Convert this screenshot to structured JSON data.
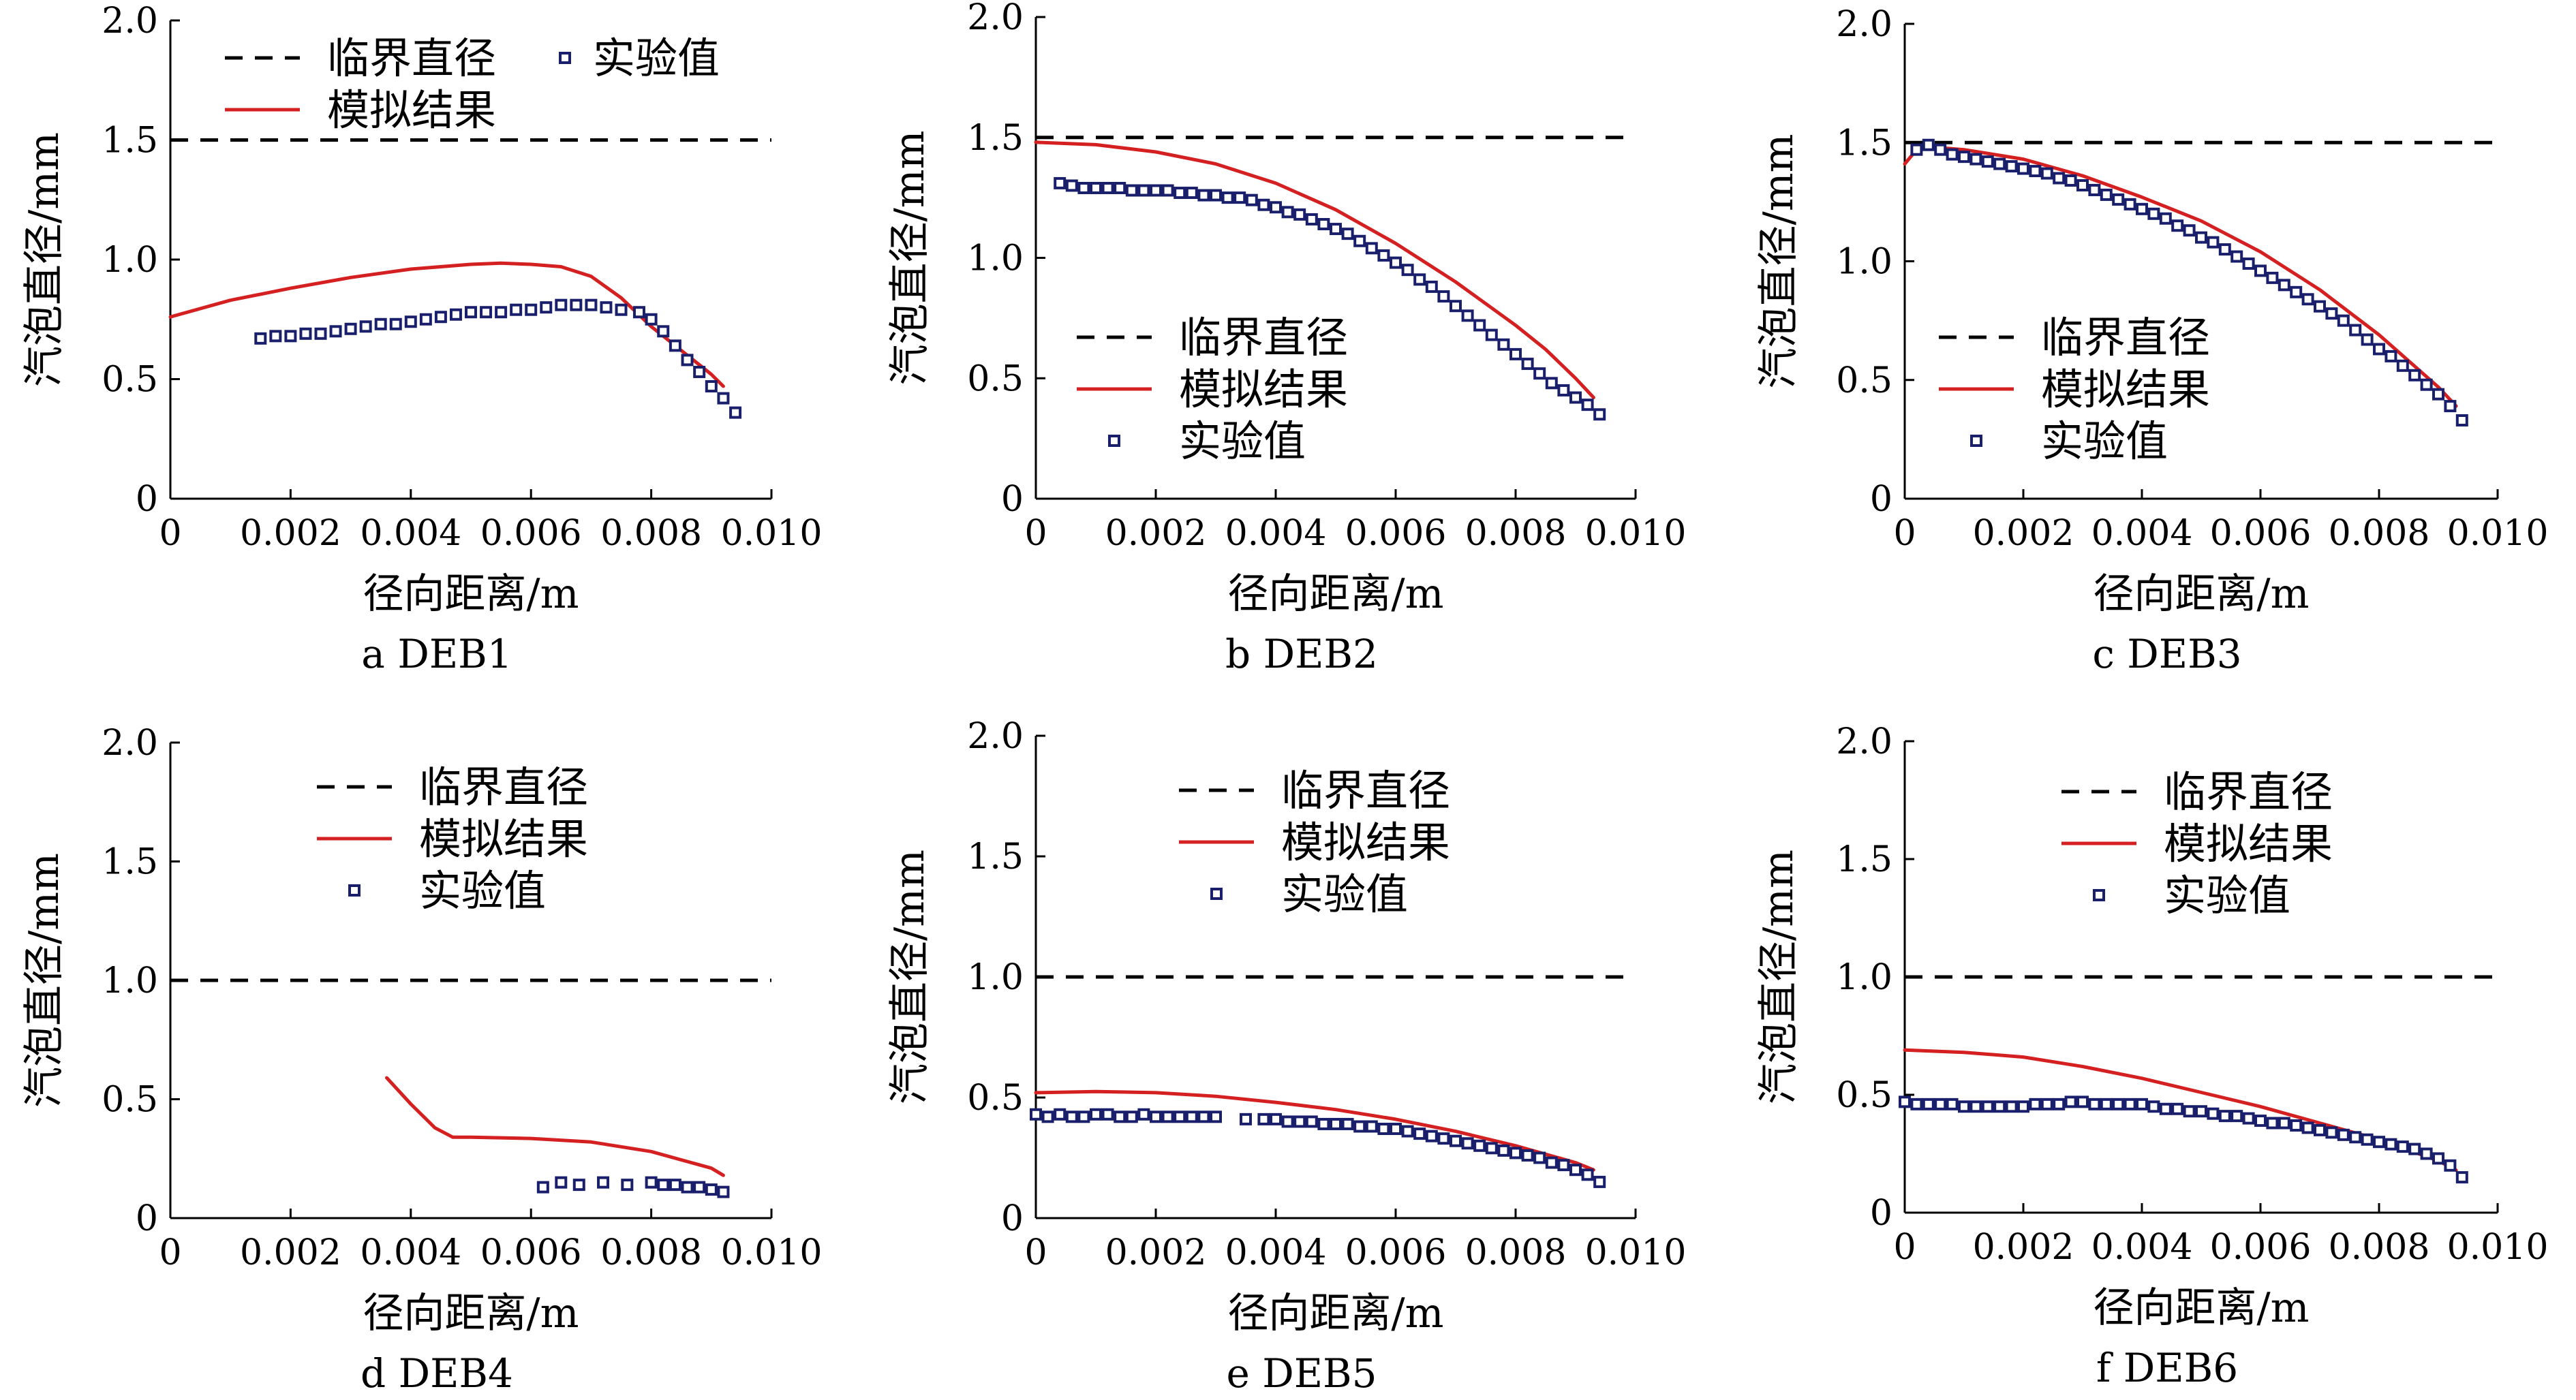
{
  "figure": {
    "legend_labels": {
      "critical": "临界直径",
      "simulated": "模拟结果",
      "experimental": "实验值"
    },
    "colors": {
      "critical": "#000000",
      "simulated": "#d42020",
      "experimental": "#1a1f6b"
    }
  },
  "chart_data": [
    {
      "id": "a",
      "type": "line",
      "caption": "a  DEB1",
      "xlabel": "径向距离/m",
      "ylabel": "汽泡直径/mm",
      "xlim": [
        0,
        0.01
      ],
      "ylim": [
        0,
        2.0
      ],
      "x_ticks": [
        "0",
        "0.002",
        "0.004",
        "0.006",
        "0.008",
        "0.010"
      ],
      "y_ticks": [
        "0",
        "0.5",
        "1.0",
        "1.5",
        "2.0"
      ],
      "legend_position": "top-left-two-column",
      "series": [
        {
          "name": "临界直径",
          "kind": "critical",
          "x": [
            0,
            0.01
          ],
          "y": [
            1.5,
            1.5
          ]
        },
        {
          "name": "模拟结果",
          "kind": "simulated",
          "x": [
            0,
            0.001,
            0.002,
            0.003,
            0.004,
            0.005,
            0.0055,
            0.006,
            0.0065,
            0.007,
            0.0075,
            0.008,
            0.0085,
            0.009,
            0.0092
          ],
          "y": [
            0.76,
            0.83,
            0.88,
            0.925,
            0.96,
            0.98,
            0.985,
            0.98,
            0.97,
            0.93,
            0.84,
            0.72,
            0.62,
            0.52,
            0.47
          ]
        },
        {
          "name": "实验值",
          "kind": "experimental",
          "x": [
            0.0015,
            0.00175,
            0.002,
            0.00225,
            0.0025,
            0.00275,
            0.003,
            0.00325,
            0.0035,
            0.00375,
            0.004,
            0.00425,
            0.0045,
            0.00475,
            0.005,
            0.00525,
            0.0055,
            0.00575,
            0.006,
            0.00625,
            0.0065,
            0.00675,
            0.007,
            0.00725,
            0.0075,
            0.0078,
            0.008,
            0.0082,
            0.0084,
            0.0086,
            0.0088,
            0.009,
            0.0092,
            0.0094
          ],
          "y": [
            0.67,
            0.68,
            0.68,
            0.69,
            0.69,
            0.7,
            0.71,
            0.72,
            0.73,
            0.73,
            0.74,
            0.75,
            0.76,
            0.77,
            0.78,
            0.78,
            0.78,
            0.79,
            0.79,
            0.8,
            0.81,
            0.81,
            0.81,
            0.8,
            0.79,
            0.78,
            0.75,
            0.7,
            0.64,
            0.58,
            0.53,
            0.47,
            0.42,
            0.36
          ]
        }
      ]
    },
    {
      "id": "b",
      "type": "line",
      "caption": "b  DEB2",
      "xlabel": "径向距离/m",
      "ylabel": "汽泡直径/mm",
      "xlim": [
        0,
        0.01
      ],
      "ylim": [
        0,
        2.0
      ],
      "x_ticks": [
        "0",
        "0.002",
        "0.004",
        "0.006",
        "0.008",
        "0.010"
      ],
      "y_ticks": [
        "0",
        "0.5",
        "1.0",
        "1.5",
        "2.0"
      ],
      "legend_position": "lower-left",
      "series": [
        {
          "name": "临界直径",
          "kind": "critical",
          "x": [
            0,
            0.01
          ],
          "y": [
            1.5,
            1.5
          ]
        },
        {
          "name": "模拟结果",
          "kind": "simulated",
          "x": [
            0,
            0.001,
            0.002,
            0.003,
            0.004,
            0.005,
            0.006,
            0.007,
            0.008,
            0.0085,
            0.009,
            0.0093
          ],
          "y": [
            1.48,
            1.47,
            1.44,
            1.39,
            1.31,
            1.2,
            1.06,
            0.9,
            0.72,
            0.62,
            0.5,
            0.42
          ]
        },
        {
          "name": "实验值",
          "kind": "experimental",
          "x": [
            0.0004,
            0.0006,
            0.0008,
            0.001,
            0.0012,
            0.0014,
            0.0016,
            0.0018,
            0.002,
            0.0022,
            0.0024,
            0.0026,
            0.0028,
            0.003,
            0.0032,
            0.0034,
            0.0036,
            0.0038,
            0.004,
            0.0042,
            0.0044,
            0.0046,
            0.0048,
            0.005,
            0.0052,
            0.0054,
            0.0056,
            0.0058,
            0.006,
            0.0062,
            0.0064,
            0.0066,
            0.0068,
            0.007,
            0.0072,
            0.0074,
            0.0076,
            0.0078,
            0.008,
            0.0082,
            0.0084,
            0.0086,
            0.0088,
            0.009,
            0.0092,
            0.0094
          ],
          "y": [
            1.31,
            1.3,
            1.29,
            1.29,
            1.29,
            1.29,
            1.28,
            1.28,
            1.28,
            1.28,
            1.27,
            1.27,
            1.26,
            1.26,
            1.25,
            1.25,
            1.24,
            1.22,
            1.21,
            1.19,
            1.18,
            1.16,
            1.14,
            1.12,
            1.1,
            1.07,
            1.04,
            1.01,
            0.98,
            0.95,
            0.91,
            0.88,
            0.84,
            0.8,
            0.76,
            0.72,
            0.68,
            0.64,
            0.6,
            0.56,
            0.52,
            0.48,
            0.45,
            0.42,
            0.39,
            0.35
          ]
        }
      ]
    },
    {
      "id": "c",
      "type": "line",
      "caption": "c  DEB3",
      "xlabel": "径向距离/m",
      "ylabel": "汽泡直径/mm",
      "xlim": [
        0,
        0.01
      ],
      "ylim": [
        0,
        2.0
      ],
      "x_ticks": [
        "0",
        "0.002",
        "0.004",
        "0.006",
        "0.008",
        "0.010"
      ],
      "y_ticks": [
        "0",
        "0.5",
        "1.0",
        "1.5",
        "2.0"
      ],
      "legend_position": "lower-left",
      "series": [
        {
          "name": "临界直径",
          "kind": "critical",
          "x": [
            0,
            0.01
          ],
          "y": [
            1.5,
            1.5
          ]
        },
        {
          "name": "模拟结果",
          "kind": "simulated",
          "x": [
            0,
            0.0002,
            0.0005,
            0.001,
            0.002,
            0.003,
            0.004,
            0.005,
            0.006,
            0.007,
            0.008,
            0.009,
            0.0093
          ],
          "y": [
            1.41,
            1.47,
            1.48,
            1.47,
            1.43,
            1.36,
            1.27,
            1.17,
            1.04,
            0.88,
            0.69,
            0.47,
            0.39
          ]
        },
        {
          "name": "实验值",
          "kind": "experimental",
          "x": [
            0.0002,
            0.0004,
            0.0006,
            0.0008,
            0.001,
            0.0012,
            0.0014,
            0.0016,
            0.0018,
            0.002,
            0.0022,
            0.0024,
            0.0026,
            0.0028,
            0.003,
            0.0032,
            0.0034,
            0.0036,
            0.0038,
            0.004,
            0.0042,
            0.0044,
            0.0046,
            0.0048,
            0.005,
            0.0052,
            0.0054,
            0.0056,
            0.0058,
            0.006,
            0.0062,
            0.0064,
            0.0066,
            0.0068,
            0.007,
            0.0072,
            0.0074,
            0.0076,
            0.0078,
            0.008,
            0.0082,
            0.0084,
            0.0086,
            0.0088,
            0.009,
            0.0092,
            0.0094
          ],
          "y": [
            1.47,
            1.49,
            1.47,
            1.45,
            1.44,
            1.43,
            1.42,
            1.41,
            1.4,
            1.39,
            1.38,
            1.37,
            1.35,
            1.34,
            1.32,
            1.3,
            1.28,
            1.26,
            1.24,
            1.22,
            1.2,
            1.18,
            1.15,
            1.13,
            1.1,
            1.08,
            1.05,
            1.02,
            0.99,
            0.96,
            0.93,
            0.9,
            0.87,
            0.84,
            0.81,
            0.78,
            0.75,
            0.71,
            0.67,
            0.63,
            0.6,
            0.56,
            0.52,
            0.48,
            0.44,
            0.39,
            0.33
          ]
        }
      ]
    },
    {
      "id": "d",
      "type": "line",
      "caption": "d  DEB4",
      "xlabel": "径向距离/m",
      "ylabel": "汽泡直径/mm",
      "xlim": [
        0,
        0.01
      ],
      "ylim": [
        0,
        2.0
      ],
      "x_ticks": [
        "0",
        "0.002",
        "0.004",
        "0.006",
        "0.008",
        "0.010"
      ],
      "y_ticks": [
        "0",
        "0.5",
        "1.0",
        "1.5",
        "2.0"
      ],
      "legend_position": "top-center",
      "series": [
        {
          "name": "临界直径",
          "kind": "critical",
          "x": [
            0,
            0.01
          ],
          "y": [
            1.0,
            1.0
          ]
        },
        {
          "name": "模拟结果",
          "kind": "simulated",
          "x": [
            0.0036,
            0.004,
            0.0044,
            0.0047,
            0.005,
            0.006,
            0.007,
            0.008,
            0.009,
            0.0092
          ],
          "y": [
            0.59,
            0.48,
            0.38,
            0.34,
            0.34,
            0.335,
            0.32,
            0.28,
            0.21,
            0.18
          ]
        },
        {
          "name": "实验值",
          "kind": "experimental",
          "x": [
            0.0062,
            0.0065,
            0.0068,
            0.0072,
            0.0076,
            0.008,
            0.0082,
            0.0084,
            0.0086,
            0.0088,
            0.009,
            0.0092
          ],
          "y": [
            0.13,
            0.15,
            0.14,
            0.15,
            0.14,
            0.15,
            0.14,
            0.14,
            0.13,
            0.13,
            0.12,
            0.11
          ]
        }
      ]
    },
    {
      "id": "e",
      "type": "line",
      "caption": "e  DEB5",
      "xlabel": "径向距离/m",
      "ylabel": "汽泡直径/mm",
      "xlim": [
        0,
        0.01
      ],
      "ylim": [
        0,
        2.0
      ],
      "x_ticks": [
        "0",
        "0.002",
        "0.004",
        "0.006",
        "0.008",
        "0.010"
      ],
      "y_ticks": [
        "0",
        "0.5",
        "1.0",
        "1.5",
        "2.0"
      ],
      "legend_position": "top-center",
      "series": [
        {
          "name": "临界直径",
          "kind": "critical",
          "x": [
            0,
            0.01
          ],
          "y": [
            1.0,
            1.0
          ]
        },
        {
          "name": "模拟结果",
          "kind": "simulated",
          "x": [
            0,
            0.001,
            0.002,
            0.003,
            0.004,
            0.005,
            0.006,
            0.007,
            0.008,
            0.009,
            0.0093
          ],
          "y": [
            0.52,
            0.525,
            0.52,
            0.505,
            0.48,
            0.45,
            0.41,
            0.36,
            0.3,
            0.23,
            0.2
          ]
        },
        {
          "name": "实验值",
          "kind": "experimental",
          "x": [
            0,
            0.0002,
            0.0004,
            0.0006,
            0.0008,
            0.001,
            0.0012,
            0.0014,
            0.0016,
            0.0018,
            0.002,
            0.0022,
            0.0024,
            0.0026,
            0.0028,
            0.003,
            0.0035,
            0.0038,
            0.004,
            0.0042,
            0.0044,
            0.0046,
            0.0048,
            0.005,
            0.0052,
            0.0054,
            0.0056,
            0.0058,
            0.006,
            0.0062,
            0.0064,
            0.0066,
            0.0068,
            0.007,
            0.0072,
            0.0074,
            0.0076,
            0.0078,
            0.008,
            0.0082,
            0.0084,
            0.0086,
            0.0088,
            0.009,
            0.0092,
            0.0094
          ],
          "y": [
            0.43,
            0.42,
            0.43,
            0.42,
            0.42,
            0.43,
            0.43,
            0.42,
            0.42,
            0.43,
            0.42,
            0.42,
            0.42,
            0.42,
            0.42,
            0.42,
            0.41,
            0.41,
            0.41,
            0.4,
            0.4,
            0.4,
            0.39,
            0.39,
            0.39,
            0.38,
            0.38,
            0.37,
            0.37,
            0.36,
            0.35,
            0.34,
            0.33,
            0.32,
            0.31,
            0.3,
            0.29,
            0.28,
            0.27,
            0.26,
            0.25,
            0.23,
            0.22,
            0.2,
            0.18,
            0.15
          ]
        }
      ]
    },
    {
      "id": "f",
      "type": "line",
      "caption": "f  DEB6",
      "xlabel": "径向距离/m",
      "ylabel": "汽泡直径/mm",
      "xlim": [
        0,
        0.01
      ],
      "ylim": [
        0,
        2.0
      ],
      "x_ticks": [
        "0",
        "0.002",
        "0.004",
        "0.006",
        "0.008",
        "0.010"
      ],
      "y_ticks": [
        "0",
        "0.5",
        "1.0",
        "1.5",
        "2.0"
      ],
      "legend_position": "top-center",
      "series": [
        {
          "name": "临界直径",
          "kind": "critical",
          "x": [
            0,
            0.01
          ],
          "y": [
            1.0,
            1.0
          ]
        },
        {
          "name": "模拟结果",
          "kind": "simulated",
          "x": [
            0,
            0.001,
            0.002,
            0.003,
            0.004,
            0.005,
            0.006,
            0.007,
            0.008,
            0.009,
            0.0093
          ],
          "y": [
            0.69,
            0.68,
            0.66,
            0.62,
            0.57,
            0.51,
            0.45,
            0.38,
            0.31,
            0.22,
            0.18
          ]
        },
        {
          "name": "实验值",
          "kind": "experimental",
          "x": [
            0,
            0.0002,
            0.0004,
            0.0006,
            0.0008,
            0.001,
            0.0012,
            0.0014,
            0.0016,
            0.0018,
            0.002,
            0.0022,
            0.0024,
            0.0026,
            0.0028,
            0.003,
            0.0032,
            0.0034,
            0.0036,
            0.0038,
            0.004,
            0.0042,
            0.0044,
            0.0046,
            0.0048,
            0.005,
            0.0052,
            0.0054,
            0.0056,
            0.0058,
            0.006,
            0.0062,
            0.0064,
            0.0066,
            0.0068,
            0.007,
            0.0072,
            0.0074,
            0.0076,
            0.0078,
            0.008,
            0.0082,
            0.0084,
            0.0086,
            0.0088,
            0.009,
            0.0092,
            0.0094
          ],
          "y": [
            0.47,
            0.46,
            0.46,
            0.46,
            0.46,
            0.45,
            0.45,
            0.45,
            0.45,
            0.45,
            0.45,
            0.46,
            0.46,
            0.46,
            0.47,
            0.47,
            0.46,
            0.46,
            0.46,
            0.46,
            0.46,
            0.45,
            0.44,
            0.44,
            0.43,
            0.43,
            0.42,
            0.41,
            0.41,
            0.4,
            0.39,
            0.38,
            0.38,
            0.37,
            0.36,
            0.35,
            0.34,
            0.33,
            0.32,
            0.31,
            0.3,
            0.29,
            0.28,
            0.27,
            0.25,
            0.23,
            0.2,
            0.15
          ]
        }
      ]
    }
  ]
}
